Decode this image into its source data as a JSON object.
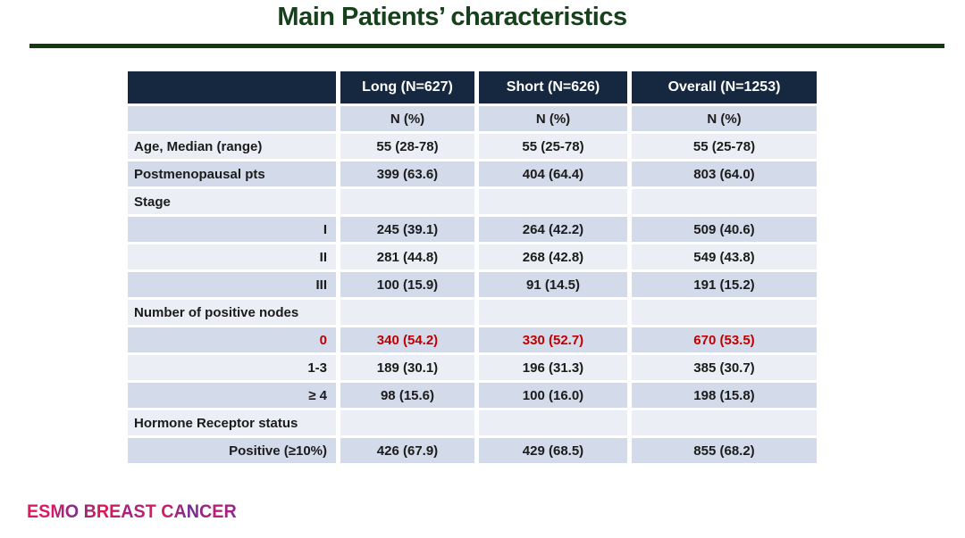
{
  "title": "Main Patients’ characteristics",
  "logo": "ESMO BREAST CANCER",
  "colors": {
    "title_green": "#15411b",
    "rule_green": "#143a14",
    "header_navy": "#16283f",
    "row_dark": "#d3dae9",
    "row_light": "#ebeef5",
    "highlight_red": "#c00000",
    "logo_pink": "#e31b5d",
    "logo_purple": "#7e2d8f"
  },
  "table": {
    "columns": [
      "",
      "Long (N=627)",
      "Short  (N=626)",
      "Overall (N=1253)"
    ],
    "subheader": [
      "N (%)",
      "N (%)",
      "N (%)"
    ],
    "rows": [
      {
        "label": "Age, Median (range)",
        "align": "left",
        "red": false,
        "values": [
          "55 (28-78)",
          "55 (25-78)",
          "55 (25-78)"
        ]
      },
      {
        "label": "Postmenopausal pts",
        "align": "left",
        "red": false,
        "values": [
          "399 (63.6)",
          "404 (64.4)",
          "803 (64.0)"
        ]
      },
      {
        "label": "Stage",
        "align": "left",
        "red": false,
        "values": [
          "",
          "",
          ""
        ]
      },
      {
        "label": "I",
        "align": "right",
        "red": false,
        "values": [
          "245 (39.1)",
          "264 (42.2)",
          "509 (40.6)"
        ]
      },
      {
        "label": "II",
        "align": "right",
        "red": false,
        "values": [
          "281 (44.8)",
          "268 (42.8)",
          "549 (43.8)"
        ]
      },
      {
        "label": "III",
        "align": "right",
        "red": false,
        "values": [
          "100 (15.9)",
          "91 (14.5)",
          "191 (15.2)"
        ]
      },
      {
        "label": "Number of positive nodes",
        "align": "left",
        "red": false,
        "values": [
          "",
          "",
          ""
        ]
      },
      {
        "label": "0",
        "align": "right",
        "red": true,
        "values": [
          "340 (54.2)",
          "330 (52.7)",
          "670 (53.5)"
        ]
      },
      {
        "label": "1-3",
        "align": "right",
        "red": false,
        "values": [
          "189 (30.1)",
          "196 (31.3)",
          "385 (30.7)"
        ]
      },
      {
        "label": "≥ 4",
        "align": "right",
        "red": false,
        "values": [
          "98 (15.6)",
          "100 (16.0)",
          "198 (15.8)"
        ]
      },
      {
        "label": "Hormone Receptor status",
        "align": "left",
        "red": false,
        "values": [
          "",
          "",
          ""
        ]
      },
      {
        "label": "Positive (≥10%)",
        "align": "right",
        "red": false,
        "values": [
          "426 (67.9)",
          "429 (68.5)",
          "855 (68.2)"
        ]
      }
    ]
  }
}
